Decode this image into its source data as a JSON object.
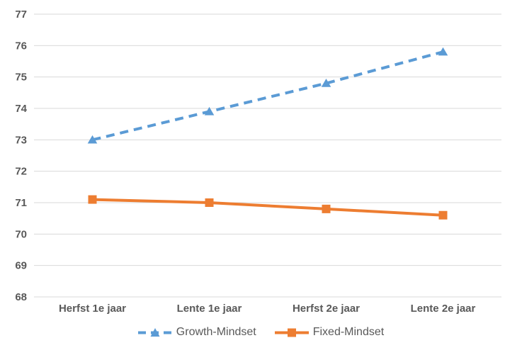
{
  "chart_data": {
    "type": "line",
    "title": "",
    "xlabel": "",
    "ylabel": "",
    "categories": [
      "Herfst 1e jaar",
      "Lente 1e jaar",
      "Herfst 2e jaar",
      "Lente 2e jaar"
    ],
    "series": [
      {
        "name": "Growth-Mindset",
        "values": [
          73.0,
          73.9,
          74.8,
          75.8
        ],
        "color": "#5B9BD5",
        "style": "dashed",
        "marker": "triangle"
      },
      {
        "name": "Fixed-Mindset",
        "values": [
          71.1,
          71.0,
          70.8,
          70.6
        ],
        "color": "#ED7D31",
        "style": "solid",
        "marker": "square"
      }
    ],
    "ylim": [
      68,
      77
    ],
    "yticks": [
      68,
      69,
      70,
      71,
      72,
      73,
      74,
      75,
      76,
      77
    ],
    "grid": true,
    "legend_position": "bottom",
    "gridline_color": "#D9D9D9",
    "text_color": "#595959",
    "background_color": "#FFFFFF"
  }
}
